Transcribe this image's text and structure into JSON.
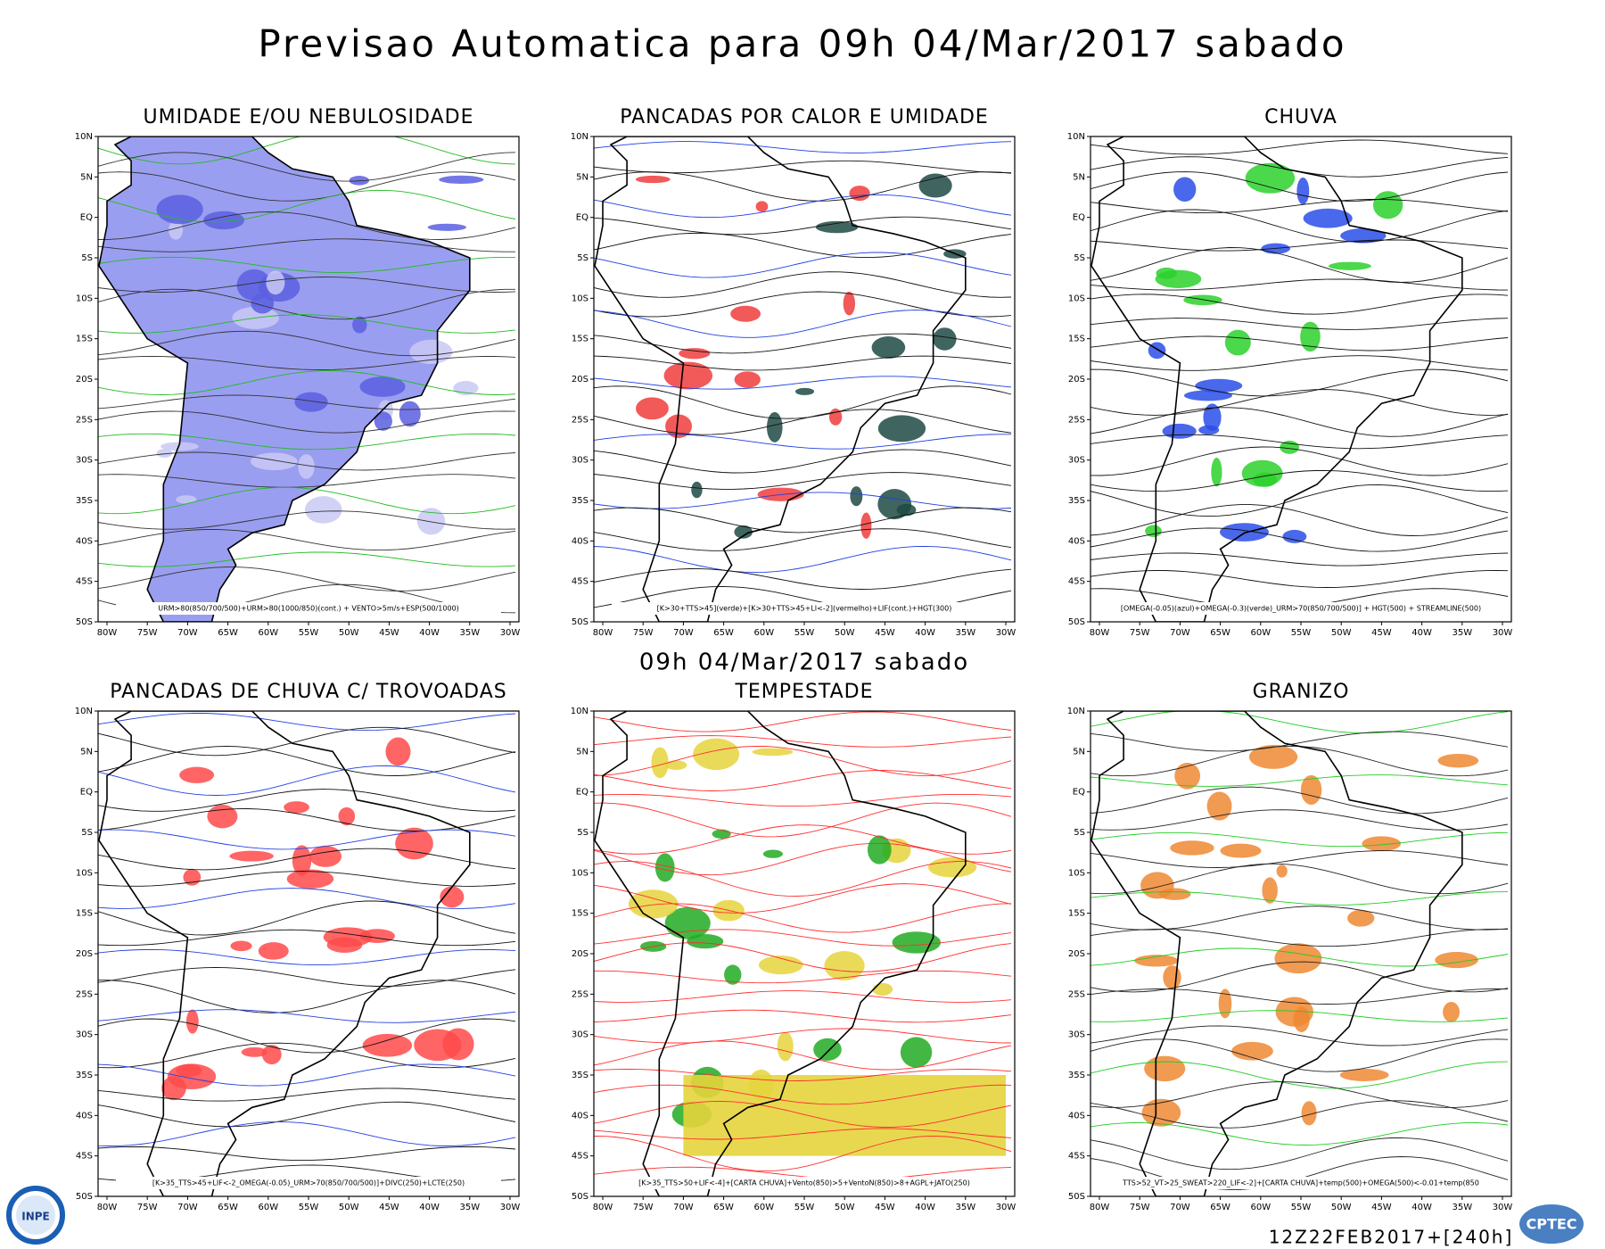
{
  "header": {
    "title": "Previsao Automatica  para 09h 04/Mar/2017 sabado",
    "valid_time": "09h 04/Mar/2017 sabado"
  },
  "axes": {
    "lat": [
      "10N",
      "5N",
      "EQ",
      "5S",
      "10S",
      "15S",
      "20S",
      "25S",
      "30S",
      "35S",
      "40S",
      "45S",
      "50S"
    ],
    "lon": [
      "80W",
      "75W",
      "70W",
      "65W",
      "60W",
      "55W",
      "50W",
      "45W",
      "40W",
      "35W",
      "30W"
    ]
  },
  "panels": [
    {
      "title": "UMIDADE E/OU NEBULOSIDADE",
      "footer": "URM>80(850/700/500)+URM>80(1000/850)(cont.) + VENTO>5m/s+ESP(500/1000)"
    },
    {
      "title": "PANCADAS POR CALOR E UMIDADE",
      "footer": "[K>30+TTS>45](verde)+[K>30+TTS>45+LI<-2](vermelho)+LIF(cont.)+HGT(300)"
    },
    {
      "title": "CHUVA",
      "footer": "[OMEGA(-0.05)(azul)+OMEGA(-0.3)(verde)_URM>70(850/700/500)] + HGT(500) + STREAMLINE(500)"
    },
    {
      "title": "PANCADAS DE CHUVA C/ TROVOADAS",
      "footer": "[K>35_TTS>45+LIF<-2_OMEGA(-0.05)_URM>70(850/700/500)]+DIVC(250)+LCTE(250)"
    },
    {
      "title": "TEMPESTADE",
      "footer": "[K>35_TTS>50+LIF<-4]+[CARTA CHUVA]+Vento(850)>5+VentoN(850)>8+AGPL+JATO(250)"
    },
    {
      "title": "GRANIZO",
      "footer": "TTS>52_VT>25_SWEAT>220_LIF<-2]+[CARTA CHUVA]+temp(500)+OMEGA(500)<-0.01+temp(850"
    }
  ],
  "footer": {
    "run": "12Z22FEB2017+[240h]",
    "logo_left": "INPE",
    "logo_right": "CPTEC"
  }
}
